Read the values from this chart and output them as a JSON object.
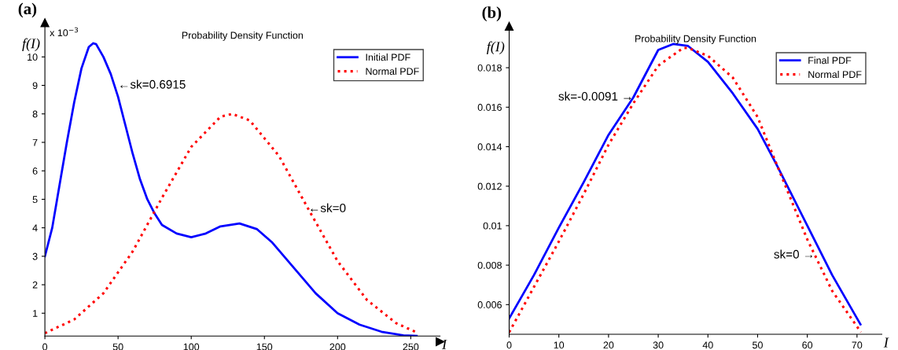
{
  "chart_data": [
    {
      "type": "line",
      "title": "Probability Density Function",
      "xlabel": "I",
      "ylabel": "f(I)",
      "xlim": [
        0,
        270
      ],
      "xticks": [
        0,
        50,
        100,
        150,
        200,
        250
      ],
      "ylim": [
        0.2,
        11.2
      ],
      "yticks": [
        1,
        2,
        3,
        4,
        5,
        6,
        7,
        8,
        9,
        10
      ],
      "grid": false,
      "legend": "top right",
      "series": [
        {
          "name": "Initial PDF",
          "color": "#0000ff",
          "line_style": "solid",
          "x": [
            0,
            5,
            10,
            15,
            20,
            25,
            30,
            33,
            35,
            40,
            45,
            50,
            55,
            60,
            65,
            70,
            75,
            80,
            90,
            100,
            110,
            120,
            133,
            145,
            155,
            165,
            175,
            185,
            200,
            215,
            230,
            245,
            254
          ],
          "values": [
            3.0,
            4.0,
            5.5,
            7.0,
            8.4,
            9.6,
            10.35,
            10.48,
            10.45,
            10.0,
            9.4,
            8.6,
            7.6,
            6.6,
            5.7,
            5.0,
            4.5,
            4.1,
            3.8,
            3.67,
            3.8,
            4.05,
            4.15,
            3.95,
            3.5,
            2.9,
            2.3,
            1.7,
            1.0,
            0.6,
            0.35,
            0.22,
            0.2
          ]
        },
        {
          "name": "Normal PDF",
          "color": "#ff0000",
          "line_style": "dotted",
          "x": [
            0,
            20,
            40,
            60,
            80,
            100,
            120,
            128,
            140,
            160,
            180,
            200,
            220,
            240,
            254
          ],
          "values": [
            0.3,
            0.78,
            1.7,
            3.17,
            5.05,
            6.84,
            7.9,
            8.0,
            7.77,
            6.52,
            4.66,
            2.83,
            1.47,
            0.65,
            0.33
          ]
        }
      ],
      "annotations": [
        "(a)",
        "x 10$^{−3}$",
        {
          "text": "←sk=0.6915",
          "x": 50,
          "y": 9.0
        },
        {
          "text": "←sk=0",
          "x": 180,
          "y": 4.66
        }
      ]
    },
    {
      "type": "line",
      "title": "Probability Density Function",
      "xlabel": "I",
      "ylabel": "f(I)",
      "xlim": [
        0,
        75
      ],
      "xticks": [
        0,
        10,
        20,
        30,
        40,
        50,
        60,
        70
      ],
      "ylim": [
        0.0045,
        0.0201
      ],
      "yticks": [
        0.006,
        0.008,
        0.01,
        0.012,
        0.014,
        0.016,
        0.018
      ],
      "grid": false,
      "legend": "top right",
      "series": [
        {
          "name": "Final PDF",
          "color": "#0000ff",
          "line_style": "solid",
          "x": [
            0,
            5,
            10,
            15,
            20,
            25,
            30,
            33,
            36,
            40,
            45,
            50,
            54,
            60,
            65,
            70.7
          ],
          "values": [
            0.0053,
            0.0075,
            0.0099,
            0.0122,
            0.0146,
            0.0165,
            0.0189,
            0.0192,
            0.0191,
            0.0183,
            0.0167,
            0.0149,
            0.013,
            0.01,
            0.0075,
            0.005
          ]
        },
        {
          "name": "Normal PDF",
          "color": "#ff0000",
          "line_style": "dotted",
          "x": [
            0,
            5,
            10,
            15,
            20,
            25,
            30,
            35,
            36,
            40,
            45,
            50,
            54,
            60,
            65,
            70.8
          ],
          "values": [
            0.0046,
            0.0069,
            0.0092,
            0.0116,
            0.0141,
            0.0162,
            0.0181,
            0.019,
            0.019,
            0.0186,
            0.0175,
            0.0155,
            0.013,
            0.0093,
            0.0067,
            0.0046
          ]
        }
      ],
      "annotations": [
        "(b)",
        {
          "text": "sk=-0.0091 →",
          "x": 25,
          "y": 0.0165
        },
        {
          "text": "sk=0 →",
          "x": 61.5,
          "y": 0.0085
        }
      ]
    }
  ]
}
